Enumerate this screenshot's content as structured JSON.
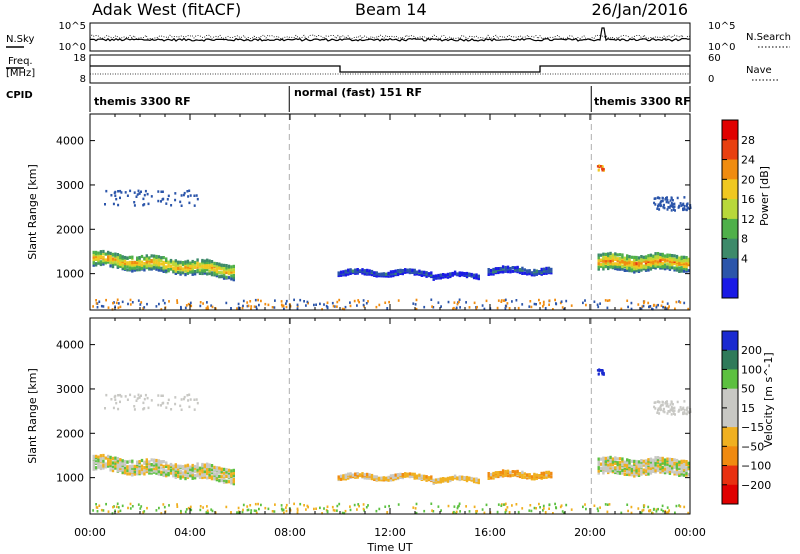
{
  "header": {
    "station": "Adak West (fitACF)",
    "beam": "Beam 14",
    "date": "26/Jan/2016"
  },
  "panels": {
    "noise": {
      "left_label": "N.Sky",
      "right_label": "N.Search",
      "left_ticks": [
        "10^5",
        "10^0"
      ],
      "right_ticks": [
        "10^5",
        "10^0"
      ]
    },
    "freq": {
      "left_label_1": "Freq.",
      "left_label_2": "[MHz]",
      "right_label": "Nave",
      "left_ticks": [
        "18",
        "8"
      ],
      "right_ticks": [
        "60",
        "0"
      ]
    },
    "cpid": {
      "label": "CPID",
      "segments": [
        "themis 3300 RF",
        "normal (fast) 151 RF",
        "themis 3300 RF"
      ]
    }
  },
  "chart_data": {
    "type": "heatmap",
    "x_label": "Time UT",
    "x_ticks": [
      "00:00",
      "04:00",
      "08:00",
      "12:00",
      "16:00",
      "20:00",
      "00:00"
    ],
    "x_range_hours": [
      0,
      24
    ],
    "y_label": "Slant Range [km]",
    "y_ticks": [
      1000,
      2000,
      3000,
      4000
    ],
    "y_range_km": [
      180,
      4600
    ],
    "power": {
      "colorbar_label": "Power [dB]",
      "colorbar_ticks": [
        4,
        8,
        12,
        16,
        20,
        24,
        28
      ],
      "colors": [
        "#1a1ae6",
        "#2b55aa",
        "#3d8a6a",
        "#4fb04a",
        "#b8d83a",
        "#f0c820",
        "#f08c10",
        "#e84010",
        "#e00000"
      ]
    },
    "velocity": {
      "colorbar_label": "Velocity [m s^-1]",
      "colorbar_ticks": [
        200,
        100,
        50,
        15,
        -15,
        -50,
        -100,
        -200
      ],
      "colors": [
        "#1a2ad0",
        "#2f7a5a",
        "#5cc040",
        "#c8c8c4",
        "#c8c8c4",
        "#f0b020",
        "#f08a10",
        "#e83010",
        "#e00000"
      ]
    },
    "cpid_boundaries_hours": [
      7.97,
      20.05
    ],
    "segments": [
      {
        "t0": 0.1,
        "t1": 5.8,
        "r_center": 1380,
        "r_width": 320,
        "power_peak": 28,
        "velocity": 0,
        "ridge_slope": -8
      },
      {
        "t0": 9.9,
        "t1": 13.7,
        "r_center": 1060,
        "r_width": 90,
        "power_peak": 10,
        "velocity": -30
      },
      {
        "t0": 13.7,
        "t1": 15.6,
        "r_center": 1000,
        "r_width": 80,
        "power_peak": 8,
        "velocity": -20
      },
      {
        "t0": 15.9,
        "t1": 18.5,
        "r_center": 1110,
        "r_width": 120,
        "power_peak": 12,
        "velocity": -40
      },
      {
        "t0": 20.3,
        "t1": 24.0,
        "r_center": 1300,
        "r_width": 350,
        "power_peak": 30,
        "velocity": 0
      }
    ]
  }
}
